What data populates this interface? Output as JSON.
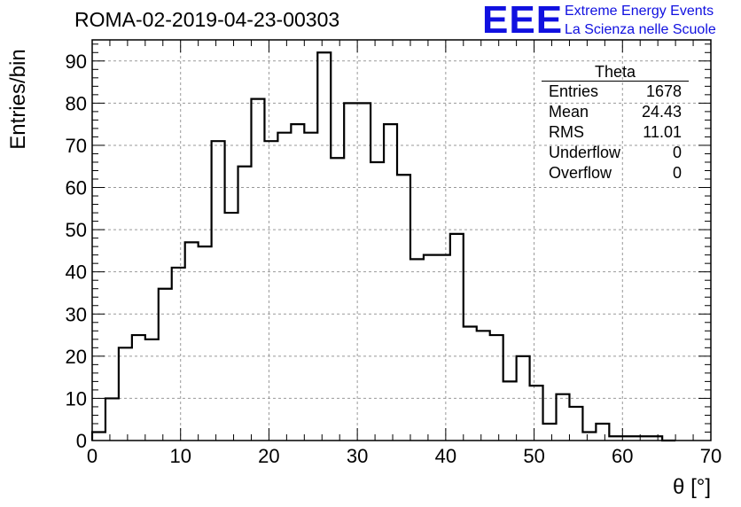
{
  "title": "ROMA-02-2019-04-23-00303",
  "logo": {
    "mark": "EEE",
    "line1": "Extreme Energy Events",
    "line2": "La Scienza nelle Scuole",
    "color": "#1010e0"
  },
  "stats": {
    "name": "Theta",
    "rows": [
      {
        "label": "Entries",
        "value": "1678"
      },
      {
        "label": "Mean",
        "value": "24.43"
      },
      {
        "label": "RMS",
        "value": "11.01"
      },
      {
        "label": "Underflow",
        "value": "0"
      },
      {
        "label": "Overflow",
        "value": "0"
      }
    ]
  },
  "chart_data": {
    "type": "bar",
    "style": "step-histogram",
    "title": "ROMA-02-2019-04-23-00303",
    "xlabel": "θ [°]",
    "ylabel": "Entries/bin",
    "xlim": [
      0,
      70
    ],
    "ylim": [
      0,
      95
    ],
    "grid": true,
    "x_ticks": [
      "0",
      "10",
      "20",
      "30",
      "40",
      "50",
      "60",
      "70"
    ],
    "y_ticks": [
      "0",
      "10",
      "20",
      "30",
      "40",
      "50",
      "60",
      "70",
      "80",
      "90"
    ],
    "bin_width": 1.5,
    "bin_edges_start": 0,
    "values": [
      2,
      10,
      22,
      25,
      24,
      36,
      41,
      47,
      46,
      71,
      54,
      65,
      81,
      71,
      73,
      75,
      73,
      92,
      67,
      80,
      80,
      66,
      75,
      63,
      43,
      44,
      44,
      49,
      27,
      26,
      25,
      14,
      20,
      13,
      4,
      11,
      8,
      2,
      4,
      1,
      1,
      1,
      1,
      0
    ]
  }
}
